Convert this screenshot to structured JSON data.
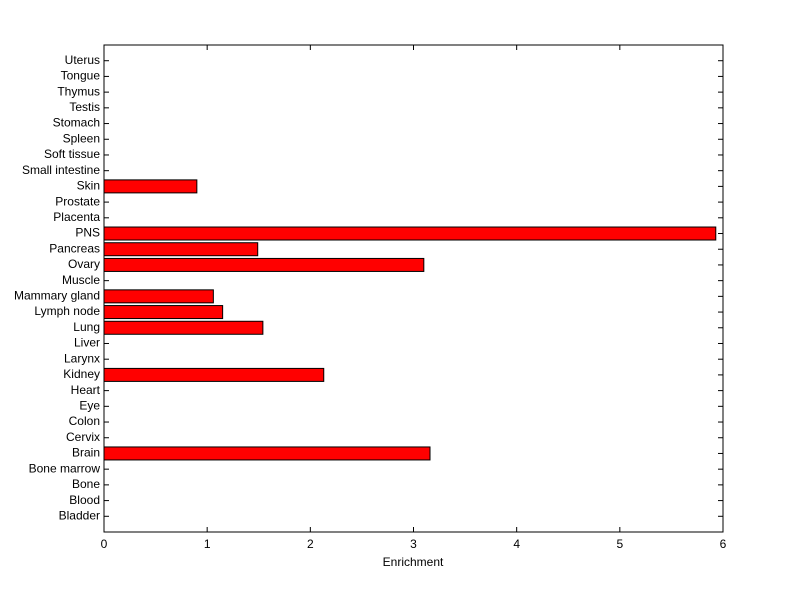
{
  "chart_data": {
    "type": "barh",
    "xlabel": "Enrichment",
    "categories": [
      "Bladder",
      "Blood",
      "Bone",
      "Bone marrow",
      "Brain",
      "Cervix",
      "Colon",
      "Eye",
      "Heart",
      "Kidney",
      "Larynx",
      "Liver",
      "Lung",
      "Lymph node",
      "Mammary gland",
      "Muscle",
      "Ovary",
      "Pancreas",
      "PNS",
      "Placenta",
      "Prostate",
      "Skin",
      "Small intestine",
      "Soft tissue",
      "Spleen",
      "Stomach",
      "Testis",
      "Thymus",
      "Tongue",
      "Uterus"
    ],
    "values": [
      0,
      0,
      0,
      0,
      3.16,
      0,
      0,
      0,
      0,
      2.13,
      0,
      0,
      1.54,
      1.15,
      1.06,
      0,
      3.1,
      1.49,
      5.93,
      0,
      0,
      0.9,
      0,
      0,
      0,
      0,
      0,
      0,
      0,
      0
    ],
    "color": "#ff0000",
    "xlim": [
      0,
      6
    ],
    "xticks": [
      0,
      1,
      2,
      3,
      4,
      5,
      6
    ]
  }
}
